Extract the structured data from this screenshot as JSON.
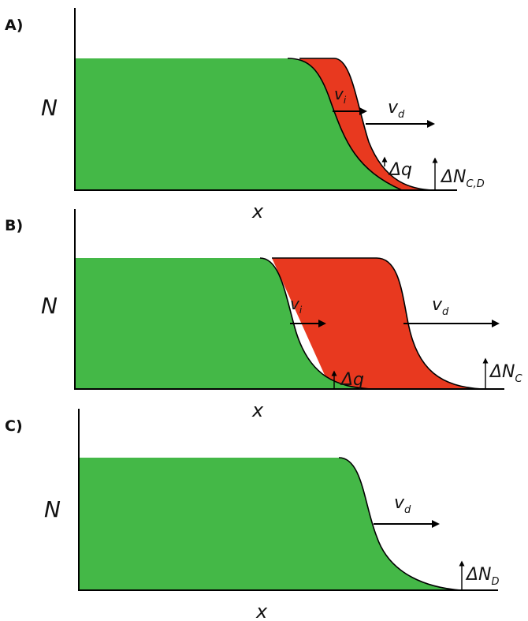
{
  "colors": {
    "cold_region": "#44b847",
    "hot_region": "#e8391f",
    "line": "#000000",
    "background": "#ffffff"
  },
  "panels": [
    {
      "letter": "A)",
      "y_label": "N",
      "x_label": "x",
      "front_velocity_label": {
        "main": "v",
        "sub": "d"
      },
      "inner_velocity_label": {
        "main": "v",
        "sub": "i"
      },
      "delta_q_label": "Δq",
      "delta_n_label": {
        "main": "ΔN",
        "sub": "C,D"
      }
    },
    {
      "letter": "B)",
      "y_label": "N",
      "x_label": "x",
      "front_velocity_label": {
        "main": "v",
        "sub": "d"
      },
      "inner_velocity_label": {
        "main": "v",
        "sub": "i"
      },
      "delta_q_label": "Δq",
      "delta_n_label": {
        "main": "ΔN",
        "sub": "C"
      }
    },
    {
      "letter": "C)",
      "y_label": "N",
      "x_label": "x",
      "front_velocity_label": {
        "main": "v",
        "sub": "d"
      },
      "delta_n_label": {
        "main": "ΔN",
        "sub": "D"
      }
    }
  ]
}
